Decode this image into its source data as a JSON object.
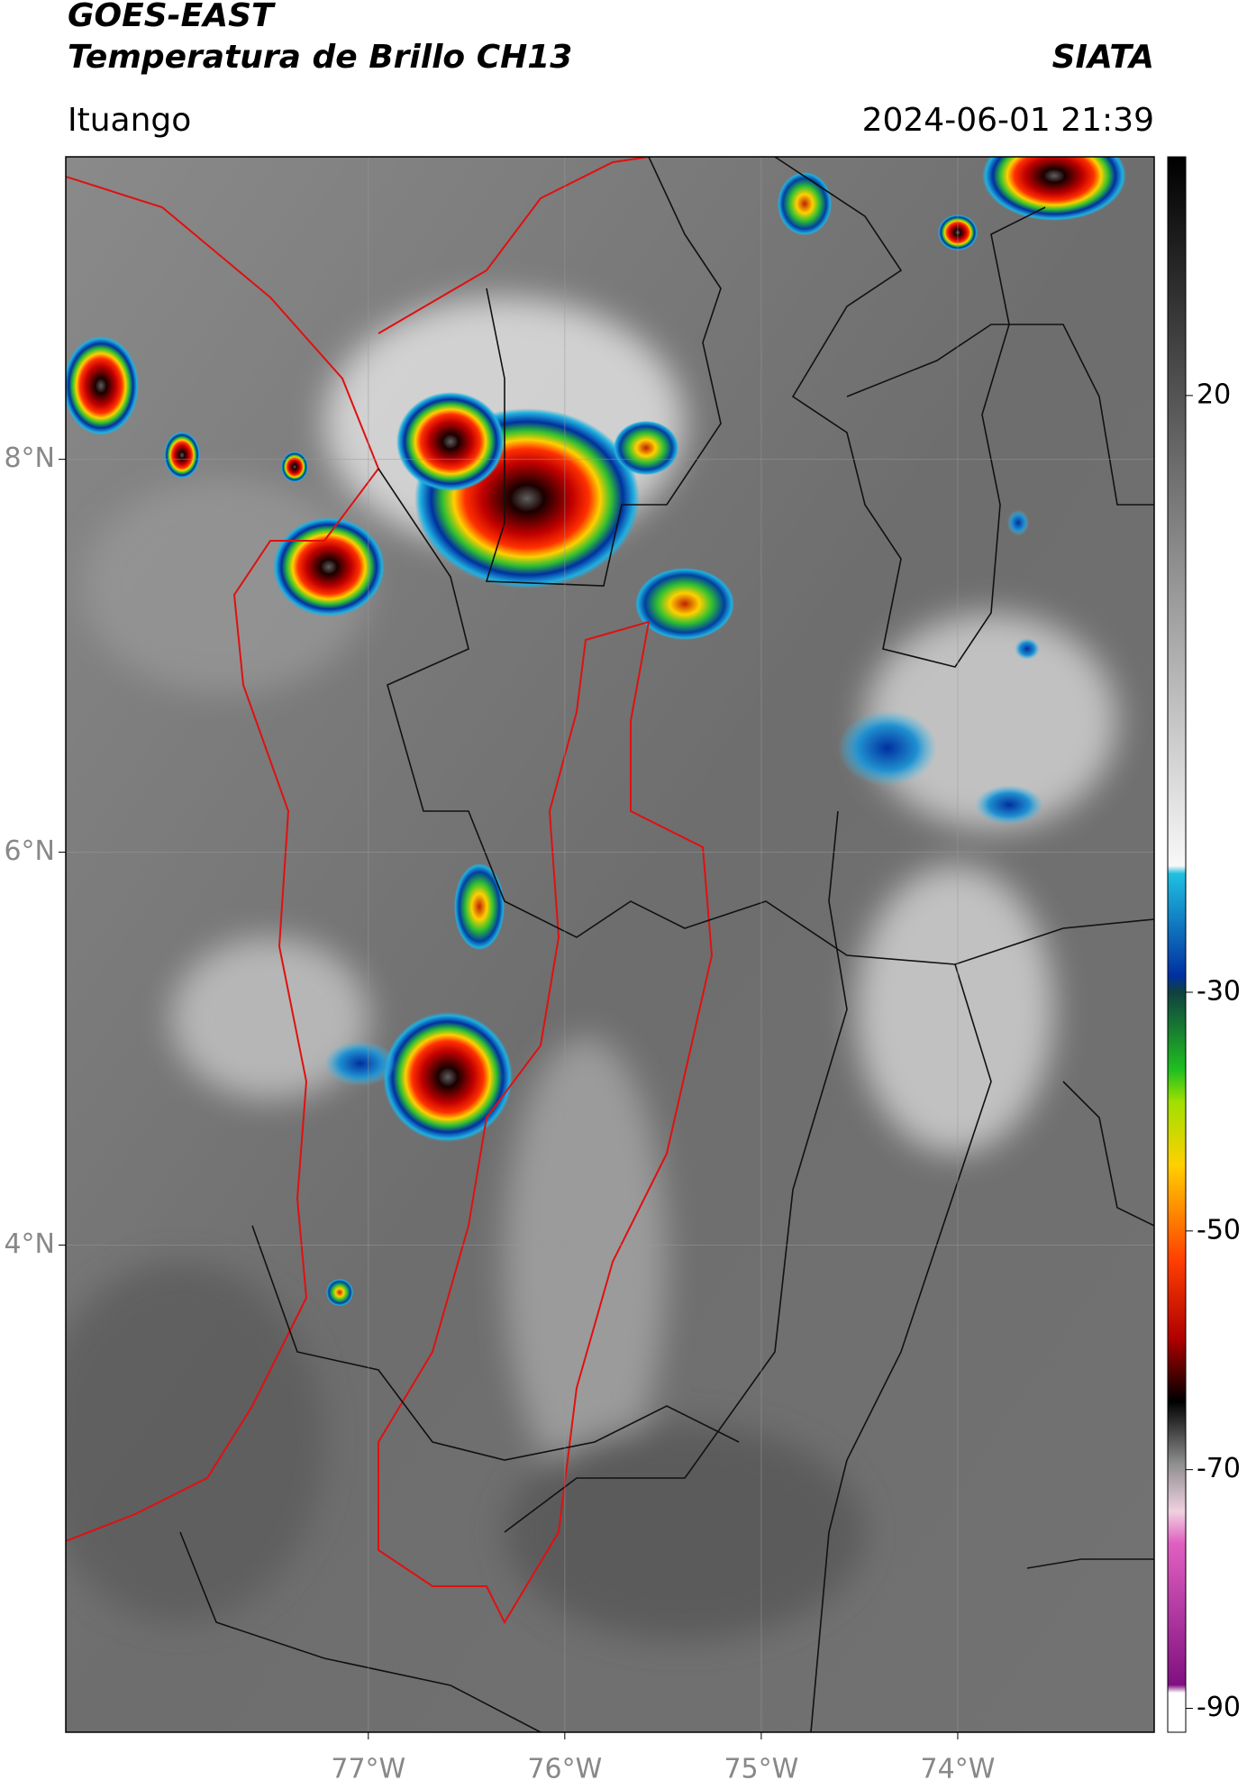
{
  "header": {
    "title": "GOES-EAST",
    "subtitle": "Temperatura de Brillo CH13",
    "source": "SIATA",
    "location": "Ituango",
    "datetime": "2024-06-01 21:39"
  },
  "map": {
    "xlim": [
      -78.54,
      -73.0
    ],
    "ylim": [
      1.52,
      9.54
    ],
    "xticks": [
      {
        "value": -77,
        "label": "77°W"
      },
      {
        "value": -76,
        "label": "76°W"
      },
      {
        "value": -75,
        "label": "75°W"
      },
      {
        "value": -74,
        "label": "74°W"
      }
    ],
    "yticks": [
      {
        "value": 8,
        "label": "8°N"
      },
      {
        "value": 6,
        "label": "6°N"
      },
      {
        "value": 4,
        "label": "4°N"
      }
    ],
    "grid": true
  },
  "colorbar": {
    "lim": [
      -92,
      40
    ],
    "ticks": [
      20,
      -30,
      -50,
      -70,
      -90
    ]
  }
}
